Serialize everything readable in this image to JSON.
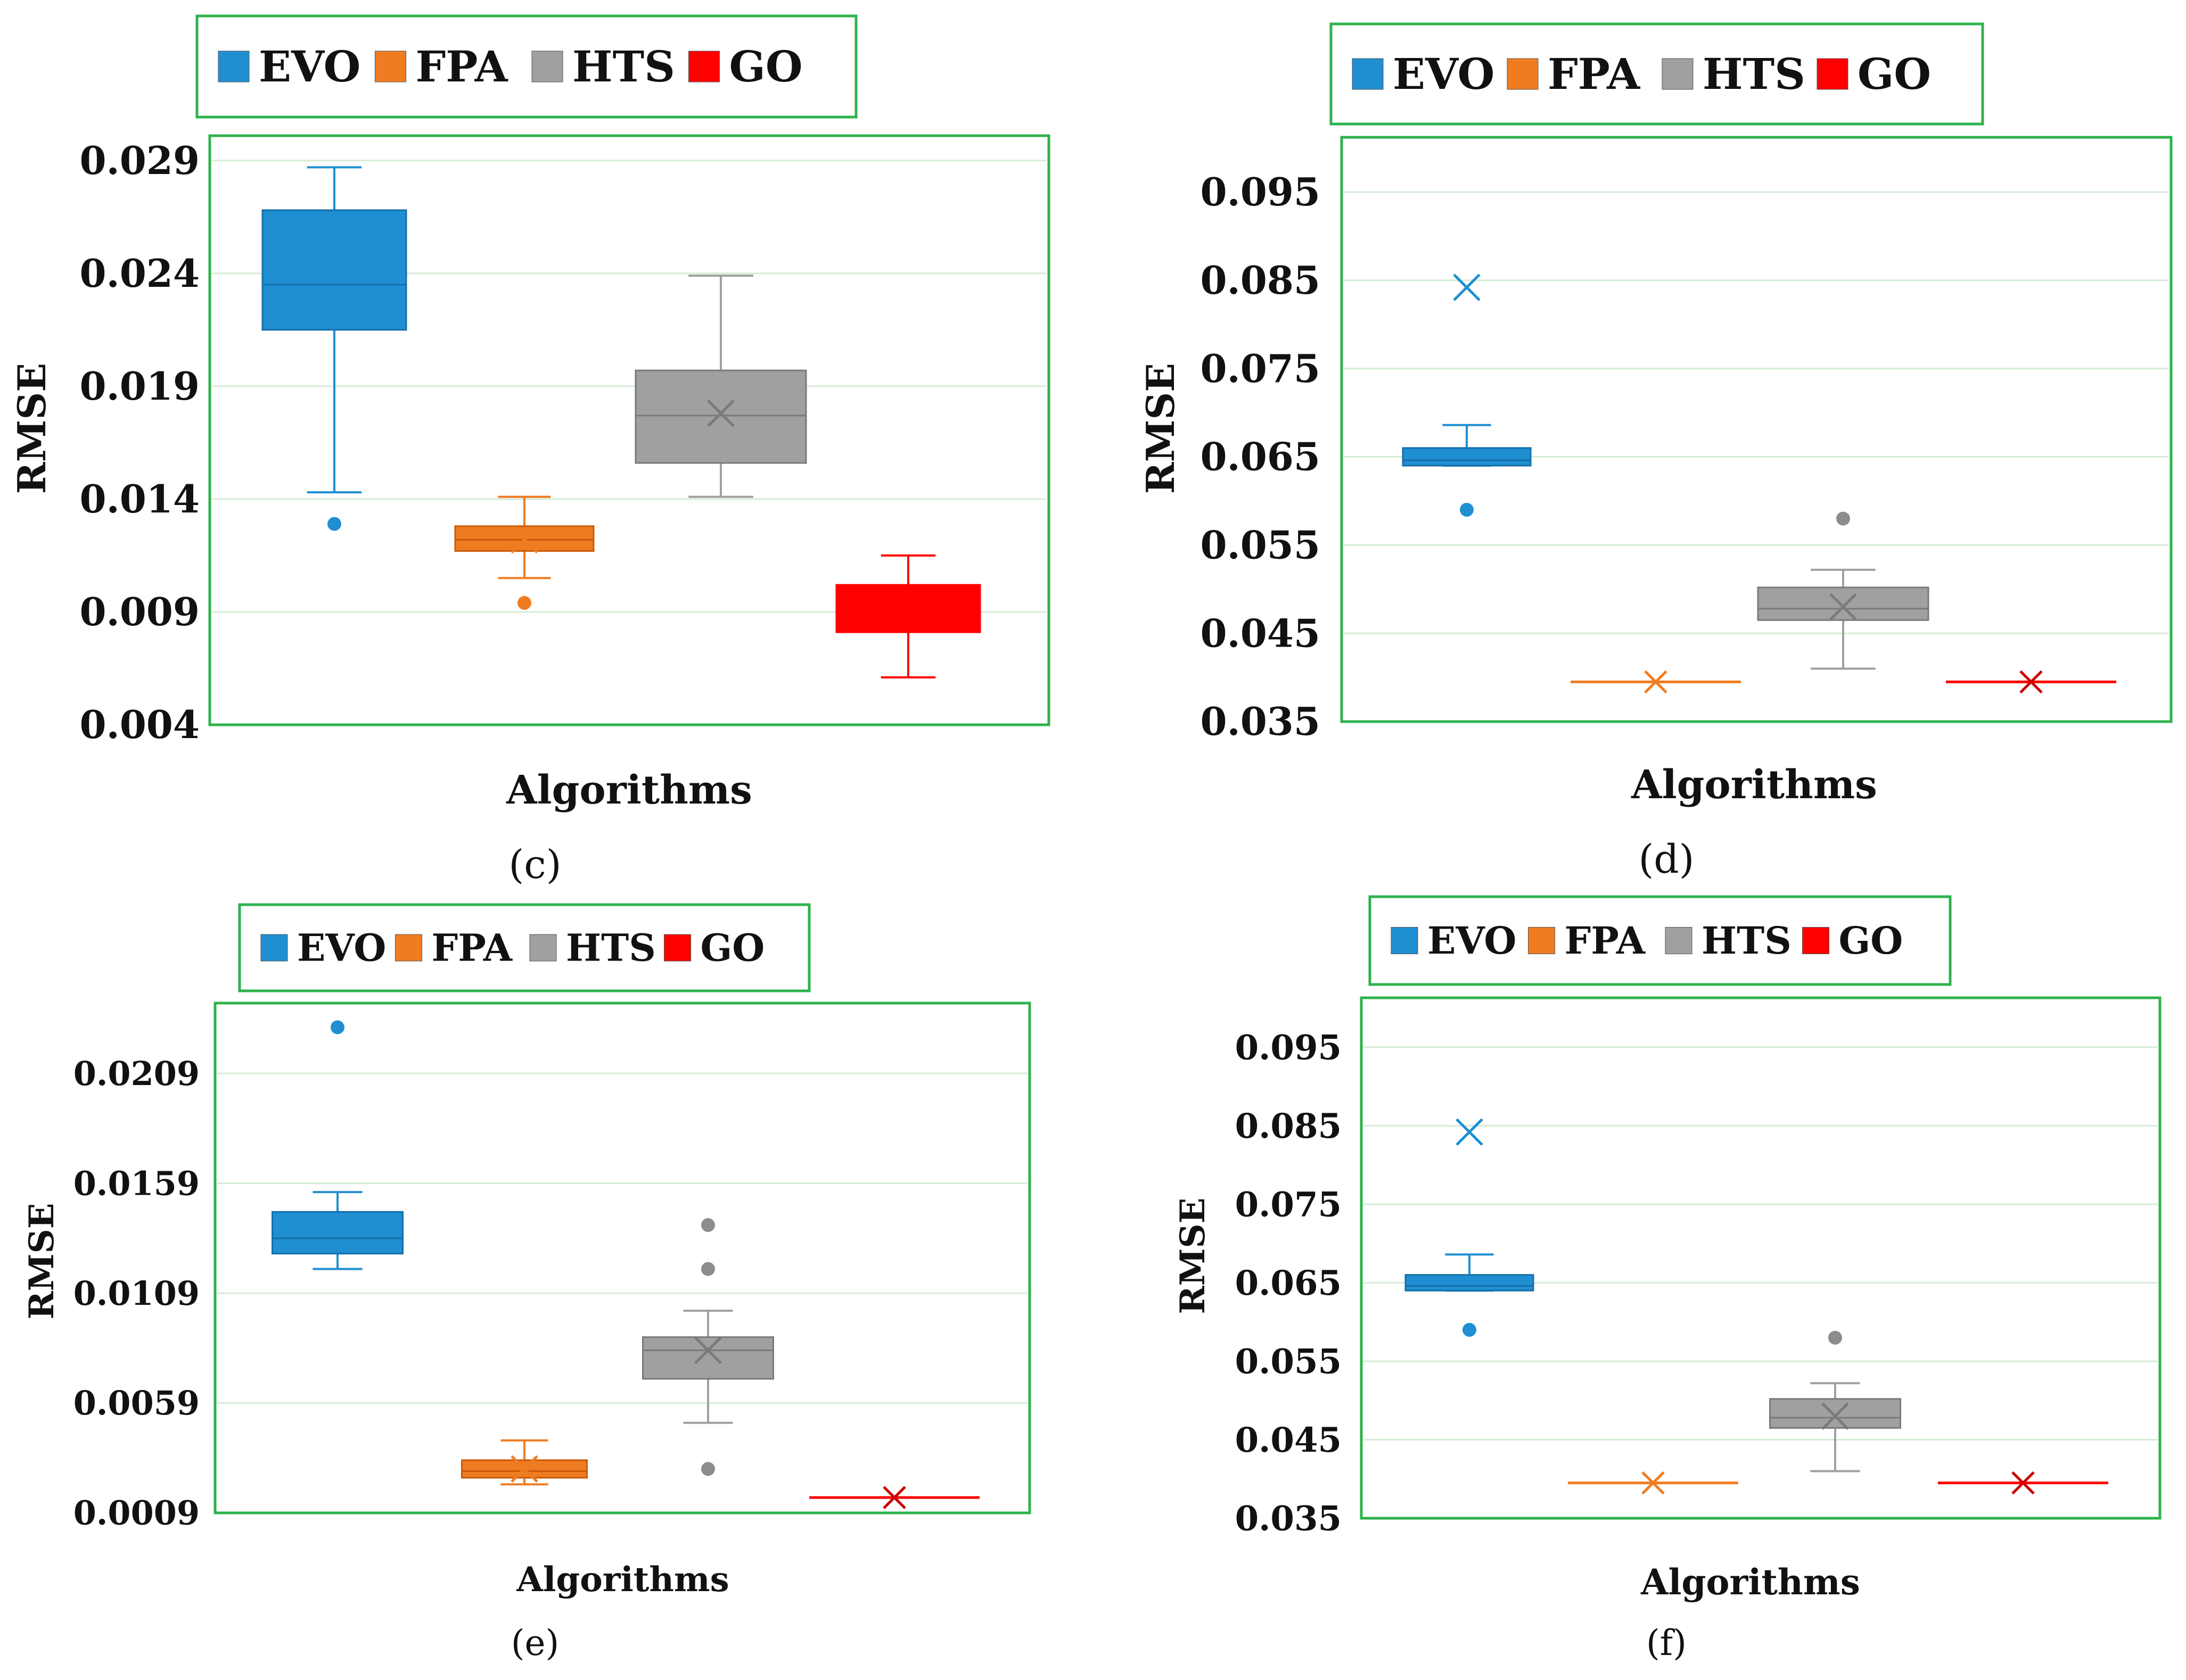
{
  "colors": {
    "EVO": "#1f8fd2",
    "FPA": "#f07c21",
    "HTS": "#a0a0a0",
    "GO": "#ff0000",
    "frame": "#2eb24d",
    "grid": "#d6ecd6"
  },
  "chart_data": [
    {
      "id": "c",
      "type": "box",
      "caption": "(c)",
      "xlabel": "Algorithms",
      "ylabel": "RMSE",
      "ylim": [
        0.004,
        0.0301
      ],
      "yticks": [
        "0.029",
        "0.024",
        "0.019",
        "0.014",
        "0.009",
        "0.004"
      ],
      "legend": [
        "EVO",
        "FPA",
        "HTS",
        "GO"
      ],
      "series": [
        {
          "name": "EVO",
          "whisker_low": 0.0143,
          "q1": 0.0215,
          "median": 0.0235,
          "q3": 0.0268,
          "whisker_high": 0.0287,
          "outliers": [
            0.0129
          ]
        },
        {
          "name": "FPA",
          "whisker_low": 0.0105,
          "q1": 0.0117,
          "median": 0.0122,
          "q3": 0.0128,
          "whisker_high": 0.0141,
          "mean": 0.0122,
          "outliers": [
            0.0094
          ]
        },
        {
          "name": "HTS",
          "whisker_low": 0.0141,
          "q1": 0.0156,
          "median": 0.0177,
          "q3": 0.0197,
          "whisker_high": 0.0239,
          "mean": 0.0178
        },
        {
          "name": "GO",
          "whisker_low": 0.0061,
          "q1": 0.0081,
          "median": 0.009,
          "q3": 0.0102,
          "whisker_high": 0.0115
        }
      ]
    },
    {
      "id": "d",
      "type": "box",
      "caption": "(d)",
      "xlabel": "Algorithms",
      "ylabel": "RMSE",
      "ylim": [
        0.035,
        0.1012
      ],
      "yticks": [
        "0.095",
        "0.085",
        "0.075",
        "0.065",
        "0.055",
        "0.045",
        "0.035"
      ],
      "legend": [
        "EVO",
        "FPA",
        "HTS",
        "GO"
      ],
      "series": [
        {
          "name": "EVO",
          "whisker_low": 0.064,
          "q1": 0.064,
          "median": 0.0646,
          "q3": 0.066,
          "whisker_high": 0.0686,
          "mean": 0.0842,
          "outliers": [
            0.059
          ]
        },
        {
          "name": "FPA",
          "whisker_low": 0.0395,
          "q1": 0.0395,
          "median": 0.0395,
          "q3": 0.0395,
          "whisker_high": 0.0395,
          "mean": 0.0395
        },
        {
          "name": "HTS",
          "whisker_low": 0.041,
          "q1": 0.0465,
          "median": 0.0478,
          "q3": 0.0502,
          "whisker_high": 0.0522,
          "mean": 0.048,
          "outliers": [
            0.058
          ]
        },
        {
          "name": "GO",
          "whisker_low": 0.0395,
          "q1": 0.0395,
          "median": 0.0395,
          "q3": 0.0395,
          "whisker_high": 0.0395,
          "mean": 0.0395
        }
      ]
    },
    {
      "id": "e",
      "type": "box",
      "caption": "(e)",
      "xlabel": "Algorithms",
      "ylabel": "RMSE",
      "ylim": [
        0.0009,
        0.0241
      ],
      "yticks": [
        "0.0209",
        "0.0159",
        "0.0109",
        "0.0059",
        "0.0009"
      ],
      "legend": [
        "EVO",
        "FPA",
        "HTS",
        "GO"
      ],
      "series": [
        {
          "name": "EVO",
          "whisker_low": 0.012,
          "q1": 0.0127,
          "median": 0.0134,
          "q3": 0.0146,
          "whisker_high": 0.0155,
          "outliers": [
            0.023
          ]
        },
        {
          "name": "FPA",
          "whisker_low": 0.0022,
          "q1": 0.0025,
          "median": 0.0028,
          "q3": 0.0033,
          "whisker_high": 0.0042,
          "mean": 0.0029
        },
        {
          "name": "HTS",
          "whisker_low": 0.005,
          "q1": 0.007,
          "median": 0.0083,
          "q3": 0.0089,
          "whisker_high": 0.0101,
          "mean": 0.0083,
          "outliers": [
            0.014,
            0.012,
            0.0029
          ]
        },
        {
          "name": "GO",
          "whisker_low": 0.0016,
          "q1": 0.0016,
          "median": 0.0016,
          "q3": 0.0016,
          "whisker_high": 0.0016,
          "mean": 0.0016
        }
      ]
    },
    {
      "id": "f",
      "type": "box",
      "caption": "(f)",
      "xlabel": "Algorithms",
      "ylabel": "RMSE",
      "ylim": [
        0.035,
        0.1013
      ],
      "yticks": [
        "0.095",
        "0.085",
        "0.075",
        "0.065",
        "0.055",
        "0.045",
        "0.035"
      ],
      "legend": [
        "EVO",
        "FPA",
        "HTS",
        "GO"
      ],
      "series": [
        {
          "name": "EVO",
          "whisker_low": 0.064,
          "q1": 0.064,
          "median": 0.0646,
          "q3": 0.066,
          "whisker_high": 0.0686,
          "mean": 0.0842,
          "outliers": [
            0.059
          ]
        },
        {
          "name": "FPA",
          "whisker_low": 0.0395,
          "q1": 0.0395,
          "median": 0.0395,
          "q3": 0.0395,
          "whisker_high": 0.0395,
          "mean": 0.0395
        },
        {
          "name": "HTS",
          "whisker_low": 0.041,
          "q1": 0.0465,
          "median": 0.0478,
          "q3": 0.0502,
          "whisker_high": 0.0522,
          "mean": 0.048,
          "outliers": [
            0.058
          ]
        },
        {
          "name": "GO",
          "whisker_low": 0.0395,
          "q1": 0.0395,
          "median": 0.0395,
          "q3": 0.0395,
          "whisker_high": 0.0395,
          "mean": 0.0395
        }
      ]
    }
  ]
}
